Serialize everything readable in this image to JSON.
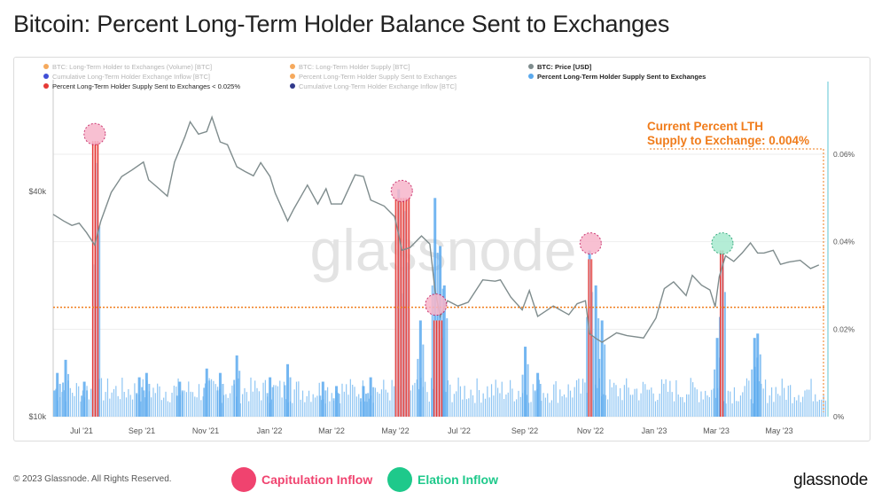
{
  "page": {
    "title": "Bitcoin: Percent Long-Term Holder Balance Sent to Exchanges",
    "copyright": "© 2023 Glassnode. All Rights Reserved.",
    "brand": "glassnode",
    "watermark": "glassnode"
  },
  "annotation": {
    "line1": "Current Percent LTH",
    "line2": "Supply to Exchange: 0.004%",
    "color": "#f07c1b"
  },
  "footer_legend": [
    {
      "label": "Capitulation Inflow",
      "color": "#f0436f"
    },
    {
      "label": "Elation Inflow",
      "color": "#1ec98b"
    }
  ],
  "legend": [
    {
      "label": "BTC: Long-Term Holder to Exchanges (Volume) [BTC]",
      "color": "#f4a04b",
      "active": false
    },
    {
      "label": "BTC: Long-Term Holder Supply [BTC]",
      "color": "#f4a04b",
      "active": false
    },
    {
      "label": "BTC: Price [USD]",
      "color": "#7f8c8d",
      "active": true
    },
    {
      "label": "Cumulative Long-Term Holder Exchange Inflow [BTC]",
      "color": "#2b3cd1",
      "active": false
    },
    {
      "label": "Percent Long-Term Holder Supply Sent to Exchanges",
      "color": "#f4a04b",
      "active": false
    },
    {
      "label": "Percent Long-Term Holder Supply Sent to Exchanges",
      "color": "#5aa9ee",
      "active": true
    },
    {
      "label": "Percent Long-Term Holder Supply Sent to Exchanges < 0.025%",
      "color": "#e53935",
      "active": true
    },
    {
      "label": "Cumulative Long-Term Holder Exchange Inflow [BTC]",
      "color": "#1a237e",
      "active": false
    }
  ],
  "chart_data": {
    "type": "line",
    "x_ticks": [
      "Jul '21",
      "Sep '21",
      "Nov '21",
      "Jan '22",
      "Mar '22",
      "May '22",
      "Jul '22",
      "Sep '22",
      "Nov '22",
      "Jan '23",
      "Mar '23",
      "May '23"
    ],
    "y_left_ticks": [
      "$10k",
      "$40k"
    ],
    "y_right_ticks": [
      "0%",
      "0.02%",
      "0.04%",
      "0.06%"
    ],
    "y_left_scale": "log",
    "y_left_range": [
      10000,
      70000
    ],
    "y_right_range": [
      0,
      0.0075
    ],
    "x_range": [
      "2021-06-10",
      "2023-06-25"
    ],
    "threshold_pct": 0.0025,
    "current_pct": 0.004,
    "series": [
      {
        "name": "BTC: Price [USD]",
        "color": "#7f8c8d",
        "dates": [
          "2021-06-10",
          "2021-06-20",
          "2021-06-28",
          "2021-07-05",
          "2021-07-12",
          "2021-07-20",
          "2021-07-26",
          "2021-08-05",
          "2021-08-15",
          "2021-08-25",
          "2021-09-05",
          "2021-09-10",
          "2021-09-20",
          "2021-09-28",
          "2021-10-05",
          "2021-10-15",
          "2021-10-20",
          "2021-10-28",
          "2021-11-05",
          "2021-11-10",
          "2021-11-18",
          "2021-11-25",
          "2021-12-04",
          "2021-12-12",
          "2021-12-20",
          "2021-12-27",
          "2022-01-05",
          "2022-01-10",
          "2022-01-22",
          "2022-01-28",
          "2022-02-05",
          "2022-02-10",
          "2022-02-20",
          "2022-02-28",
          "2022-03-05",
          "2022-03-15",
          "2022-03-28",
          "2022-04-05",
          "2022-04-12",
          "2022-04-25",
          "2022-05-05",
          "2022-05-09",
          "2022-05-12",
          "2022-05-20",
          "2022-05-31",
          "2022-06-08",
          "2022-06-13",
          "2022-06-18",
          "2022-06-25",
          "2022-07-05",
          "2022-07-15",
          "2022-07-29",
          "2022-08-10",
          "2022-08-15",
          "2022-08-25",
          "2022-09-05",
          "2022-09-12",
          "2022-09-20",
          "2022-10-05",
          "2022-10-20",
          "2022-10-28",
          "2022-11-05",
          "2022-11-09",
          "2022-11-15",
          "2022-11-21",
          "2022-12-05",
          "2022-12-15",
          "2022-12-31",
          "2023-01-12",
          "2023-01-20",
          "2023-01-29",
          "2023-02-10",
          "2023-02-16",
          "2023-02-25",
          "2023-03-05",
          "2023-03-10",
          "2023-03-14",
          "2023-03-20",
          "2023-03-28",
          "2023-04-05",
          "2023-04-13",
          "2023-04-20",
          "2023-04-26",
          "2023-05-05",
          "2023-05-12",
          "2023-05-20",
          "2023-05-31",
          "2023-06-10",
          "2023-06-18"
        ],
        "values": [
          36500,
          35000,
          34000,
          34500,
          32500,
          30000,
          35000,
          42000,
          46500,
          48500,
          51000,
          45500,
          43000,
          41000,
          51000,
          60000,
          66000,
          61000,
          62000,
          68000,
          58000,
          57000,
          49500,
          48000,
          46700,
          50800,
          46500,
          41800,
          35000,
          37800,
          41500,
          44000,
          39000,
          43000,
          39000,
          39000,
          47000,
          46500,
          40000,
          38500,
          36000,
          32000,
          29000,
          29500,
          31800,
          30200,
          22500,
          19000,
          21000,
          20300,
          20800,
          24000,
          23800,
          24000,
          21500,
          19800,
          22400,
          19000,
          20300,
          19200,
          20600,
          21000,
          17000,
          16500,
          16100,
          17100,
          16800,
          16550,
          18800,
          22700,
          23700,
          21700,
          24700,
          23200,
          22500,
          20200,
          24500,
          28000,
          27000,
          28500,
          30400,
          28500,
          28500,
          29000,
          26500,
          26900,
          27200,
          25800,
          26400
        ]
      },
      {
        "name": "Percent Long-Term Holder Supply Sent to Exchanges",
        "color": "#5aa9ee",
        "spikes": [
          {
            "date": "2021-06-14",
            "value": 0.001
          },
          {
            "date": "2021-06-22",
            "value": 0.0013
          },
          {
            "date": "2021-07-10",
            "value": 0.0008
          },
          {
            "date": "2021-07-22",
            "value": 0.0058
          },
          {
            "date": "2021-09-01",
            "value": 0.0009
          },
          {
            "date": "2021-09-08",
            "value": 0.001
          },
          {
            "date": "2021-10-10",
            "value": 0.0008
          },
          {
            "date": "2021-11-05",
            "value": 0.0011
          },
          {
            "date": "2021-11-18",
            "value": 0.001
          },
          {
            "date": "2021-12-04",
            "value": 0.0014
          },
          {
            "date": "2022-01-05",
            "value": 0.0009
          },
          {
            "date": "2022-01-22",
            "value": 0.0012
          },
          {
            "date": "2022-02-25",
            "value": 0.0008
          },
          {
            "date": "2022-03-10",
            "value": 0.0007
          },
          {
            "date": "2022-04-05",
            "value": 0.0007
          },
          {
            "date": "2022-04-12",
            "value": 0.0009
          },
          {
            "date": "2022-05-09",
            "value": 0.0052
          },
          {
            "date": "2022-05-15",
            "value": 0.0047
          },
          {
            "date": "2022-05-30",
            "value": 0.0022
          },
          {
            "date": "2022-06-13",
            "value": 0.005
          },
          {
            "date": "2022-06-18",
            "value": 0.0039
          },
          {
            "date": "2022-06-22",
            "value": 0.003
          },
          {
            "date": "2022-09-08",
            "value": 0.0016
          },
          {
            "date": "2022-09-20",
            "value": 0.001
          },
          {
            "date": "2022-11-09",
            "value": 0.0038
          },
          {
            "date": "2022-11-15",
            "value": 0.003
          },
          {
            "date": "2022-11-21",
            "value": 0.0022
          },
          {
            "date": "2023-03-12",
            "value": 0.0018
          },
          {
            "date": "2023-03-17",
            "value": 0.0038
          },
          {
            "date": "2023-04-17",
            "value": 0.0018
          },
          {
            "date": "2023-04-20",
            "value": 0.0019
          }
        ]
      },
      {
        "name": "Percent Long-Term Holder Supply Sent to Exchanges < 0.025%",
        "color": "#e53935",
        "bands": [
          {
            "start": "2021-07-18",
            "end": "2021-07-24",
            "peak": 0.0063
          },
          {
            "start": "2022-05-06",
            "end": "2022-05-20",
            "peak": 0.005
          },
          {
            "start": "2022-06-12",
            "end": "2022-06-20",
            "peak": 0.0022
          },
          {
            "start": "2022-11-08",
            "end": "2022-11-12",
            "peak": 0.0036
          },
          {
            "start": "2023-03-15",
            "end": "2023-03-18",
            "peak": 0.0038
          }
        ]
      }
    ],
    "markers": [
      {
        "date": "2021-07-20",
        "value": 0.0064,
        "kind": "capitulation"
      },
      {
        "date": "2022-05-12",
        "value": 0.0051,
        "kind": "capitulation"
      },
      {
        "date": "2022-06-14",
        "value": 0.0025,
        "kind": "capitulation"
      },
      {
        "date": "2022-11-10",
        "value": 0.0039,
        "kind": "capitulation"
      },
      {
        "date": "2023-03-17",
        "value": 0.0039,
        "kind": "elation"
      }
    ]
  }
}
